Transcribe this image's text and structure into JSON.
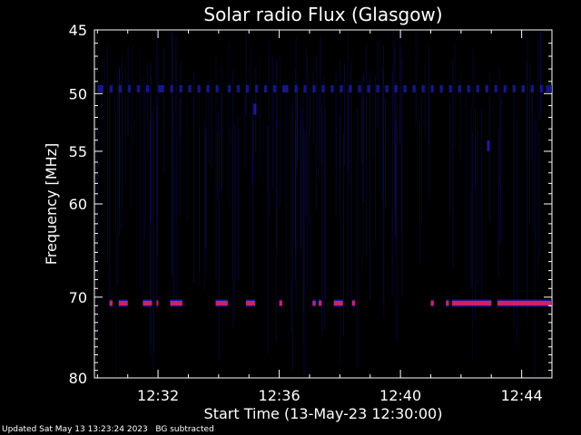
{
  "chart_data": {
    "type": "heatmap",
    "title": "Solar radio Flux (Glasgow)",
    "xlabel": "Start Time (13-May-23 12:30:00)",
    "ylabel": "Frequency [MHz]",
    "xlim_minutes": [
      12.5,
      12.75
    ],
    "ylim": [
      45,
      80
    ],
    "y_scale": "log",
    "y_ticks": [
      45,
      50,
      55,
      60,
      70,
      80
    ],
    "y_tick_labels": [
      "45",
      "50",
      "55",
      "60",
      "70",
      "80"
    ],
    "x_ticks": [
      "12:32",
      "12:36",
      "12:40",
      "12:44"
    ],
    "x_tick_minutes": [
      32,
      36,
      40,
      44
    ],
    "x_range_minutes": [
      29.9,
      45.0
    ],
    "colors": {
      "background": "#000000",
      "band_low": "#1a1a9e",
      "band_high": "#cc2266"
    },
    "bands": [
      {
        "name": "",
        "frequency_mhz": 49.6,
        "intensity": "low",
        "segments_minutes": [
          [
            30.0,
            30.2
          ],
          [
            30.4,
            30.5
          ],
          [
            30.7,
            30.8
          ],
          [
            31.0,
            31.1
          ],
          [
            31.3,
            31.4
          ],
          [
            31.6,
            31.7
          ],
          [
            32.0,
            32.2
          ],
          [
            32.4,
            32.5
          ],
          [
            32.7,
            32.8
          ],
          [
            33.0,
            33.1
          ],
          [
            33.3,
            33.4
          ],
          [
            33.6,
            33.7
          ],
          [
            33.9,
            34.0
          ],
          [
            34.3,
            34.4
          ],
          [
            34.6,
            34.7
          ],
          [
            34.9,
            35.0
          ],
          [
            35.2,
            35.3
          ],
          [
            35.5,
            35.6
          ],
          [
            35.8,
            35.9
          ],
          [
            36.1,
            36.3
          ],
          [
            36.5,
            36.6
          ],
          [
            36.8,
            36.9
          ],
          [
            37.1,
            37.2
          ],
          [
            37.4,
            37.5
          ],
          [
            37.7,
            37.8
          ],
          [
            38.0,
            38.1
          ],
          [
            38.3,
            38.4
          ],
          [
            38.6,
            38.7
          ],
          [
            38.9,
            39.0
          ],
          [
            39.2,
            39.3
          ],
          [
            39.5,
            39.6
          ],
          [
            39.8,
            39.9
          ],
          [
            40.1,
            40.2
          ],
          [
            40.4,
            40.5
          ],
          [
            40.7,
            40.8
          ],
          [
            41.0,
            41.1
          ],
          [
            41.3,
            41.4
          ],
          [
            41.6,
            41.7
          ],
          [
            41.9,
            42.0
          ],
          [
            42.2,
            42.3
          ],
          [
            42.5,
            42.6
          ],
          [
            42.8,
            42.9
          ],
          [
            43.1,
            43.2
          ],
          [
            43.4,
            43.5
          ],
          [
            43.7,
            43.8
          ],
          [
            44.0,
            44.1
          ],
          [
            44.3,
            44.4
          ],
          [
            44.6,
            44.7
          ],
          [
            44.8,
            45.0
          ]
        ]
      },
      {
        "name": "",
        "frequency_mhz": 70.7,
        "intensity": "high",
        "segments_minutes": [
          [
            30.4,
            30.5
          ],
          [
            30.7,
            31.0
          ],
          [
            31.5,
            31.8
          ],
          [
            31.95,
            32.0
          ],
          [
            32.4,
            32.8
          ],
          [
            33.9,
            34.3
          ],
          [
            34.9,
            35.2
          ],
          [
            36.0,
            36.1
          ],
          [
            37.1,
            37.2
          ],
          [
            37.3,
            37.4
          ],
          [
            37.8,
            38.1
          ],
          [
            38.4,
            38.5
          ],
          [
            41.0,
            41.1
          ],
          [
            41.5,
            41.6
          ],
          [
            41.7,
            43.0
          ],
          [
            43.2,
            45.0
          ]
        ]
      }
    ],
    "features": [
      {
        "frequency_mhz": 51.3,
        "minute": 35.2,
        "intensity": "low"
      },
      {
        "frequency_mhz": 54.5,
        "minute": 42.9,
        "intensity": "low"
      }
    ]
  },
  "footer": {
    "updated": "Updated Sat May 13 13:23:24 2023",
    "bg_note": "BG subtracted"
  }
}
